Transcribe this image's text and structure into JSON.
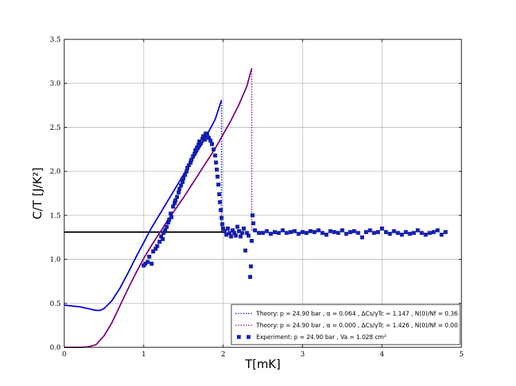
{
  "chart_data": {
    "type": "line",
    "title": "",
    "xlabel": "T[mK]",
    "ylabel": "C/T [J/K²]",
    "xlim": [
      0,
      5
    ],
    "ylim": [
      0,
      3.5
    ],
    "xticks": [
      "0",
      "1",
      "2",
      "3",
      "4",
      "5"
    ],
    "yticks": [
      "0.0",
      "0.5",
      "1.0",
      "1.5",
      "2.0",
      "2.5",
      "3.0",
      "3.5"
    ],
    "grid": true,
    "legend_position": "lower-right",
    "colors": {
      "theory1": "#0000dd",
      "theory2": "#800080",
      "experiment": "#1020c8",
      "reference": "#000000"
    },
    "reference_line": {
      "y": 1.31
    },
    "series": [
      {
        "name": "Theory: p = 24.90 bar , α = 0.064 , ΔCs/γTc ≃ 1.147 , N(0)/Nf = 0.36",
        "kind": "line",
        "color": "#0000dd",
        "x": [
          0.0,
          0.1,
          0.2,
          0.3,
          0.4,
          0.45,
          0.5,
          0.6,
          0.7,
          0.8,
          0.9,
          1.0,
          1.1,
          1.2,
          1.3,
          1.4,
          1.5,
          1.6,
          1.7,
          1.8,
          1.9,
          1.98
        ],
        "y": [
          0.48,
          0.47,
          0.46,
          0.44,
          0.42,
          0.42,
          0.44,
          0.53,
          0.67,
          0.84,
          1.02,
          1.19,
          1.36,
          1.51,
          1.66,
          1.81,
          1.96,
          2.11,
          2.26,
          2.42,
          2.59,
          2.81
        ],
        "drop": {
          "x": 1.98,
          "from": 2.81,
          "to": 1.31
        }
      },
      {
        "name": "Theory: p = 24.90 bar , α = 0.000 , ΔCs/γTc ≃ 1.426 , N(0)/Nf = 0.00",
        "kind": "line",
        "color": "#800080",
        "x": [
          0.0,
          0.2,
          0.3,
          0.4,
          0.5,
          0.6,
          0.7,
          0.8,
          0.9,
          1.0,
          1.1,
          1.2,
          1.3,
          1.4,
          1.5,
          1.6,
          1.7,
          1.8,
          1.9,
          2.0,
          2.1,
          2.2,
          2.3,
          2.36
        ],
        "y": [
          0.0,
          0.0,
          0.005,
          0.03,
          0.13,
          0.28,
          0.47,
          0.66,
          0.84,
          1.01,
          1.16,
          1.3,
          1.44,
          1.57,
          1.7,
          1.84,
          1.98,
          2.12,
          2.26,
          2.42,
          2.58,
          2.76,
          2.97,
          3.17
        ],
        "drop": {
          "x": 2.36,
          "from": 3.17,
          "to": 1.31
        }
      },
      {
        "name": "Experiment: p = 24.90 bar , Va = 1.028 cm³",
        "kind": "scatter",
        "color": "#1020c8",
        "points": [
          [
            1.0,
            0.93
          ],
          [
            1.02,
            0.95
          ],
          [
            1.05,
            0.97
          ],
          [
            1.07,
            1.03
          ],
          [
            1.1,
            0.95
          ],
          [
            1.12,
            1.09
          ],
          [
            1.15,
            1.12
          ],
          [
            1.17,
            1.15
          ],
          [
            1.2,
            1.2
          ],
          [
            1.22,
            1.26
          ],
          [
            1.24,
            1.23
          ],
          [
            1.25,
            1.3
          ],
          [
            1.27,
            1.33
          ],
          [
            1.29,
            1.37
          ],
          [
            1.31,
            1.42
          ],
          [
            1.32,
            1.45
          ],
          [
            1.34,
            1.52
          ],
          [
            1.35,
            1.48
          ],
          [
            1.37,
            1.6
          ],
          [
            1.39,
            1.64
          ],
          [
            1.4,
            1.67
          ],
          [
            1.42,
            1.71
          ],
          [
            1.44,
            1.76
          ],
          [
            1.45,
            1.8
          ],
          [
            1.47,
            1.84
          ],
          [
            1.49,
            1.88
          ],
          [
            1.5,
            1.92
          ],
          [
            1.52,
            1.96
          ],
          [
            1.54,
            2.0
          ],
          [
            1.55,
            2.04
          ],
          [
            1.57,
            2.07
          ],
          [
            1.59,
            2.1
          ],
          [
            1.6,
            2.13
          ],
          [
            1.62,
            2.17
          ],
          [
            1.64,
            2.2
          ],
          [
            1.65,
            2.24
          ],
          [
            1.67,
            2.27
          ],
          [
            1.69,
            2.3
          ],
          [
            1.7,
            2.34
          ],
          [
            1.72,
            2.32
          ],
          [
            1.74,
            2.37
          ],
          [
            1.75,
            2.4
          ],
          [
            1.77,
            2.36
          ],
          [
            1.78,
            2.43
          ],
          [
            1.8,
            2.41
          ],
          [
            1.82,
            2.38
          ],
          [
            1.84,
            2.35
          ],
          [
            1.86,
            2.31
          ],
          [
            1.88,
            2.25
          ],
          [
            1.9,
            2.18
          ],
          [
            1.91,
            2.1
          ],
          [
            1.92,
            2.02
          ],
          [
            1.93,
            1.94
          ],
          [
            1.94,
            1.85
          ],
          [
            1.95,
            1.74
          ],
          [
            1.96,
            1.65
          ],
          [
            1.97,
            1.56
          ],
          [
            1.98,
            1.47
          ],
          [
            1.99,
            1.4
          ],
          [
            2.0,
            1.35
          ],
          [
            2.02,
            1.32
          ],
          [
            2.04,
            1.28
          ],
          [
            2.06,
            1.35
          ],
          [
            2.08,
            1.3
          ],
          [
            2.1,
            1.26
          ],
          [
            2.12,
            1.33
          ],
          [
            2.14,
            1.3
          ],
          [
            2.16,
            1.27
          ],
          [
            2.18,
            1.37
          ],
          [
            2.2,
            1.32
          ],
          [
            2.22,
            1.26
          ],
          [
            2.24,
            1.3
          ],
          [
            2.26,
            1.35
          ],
          [
            2.28,
            1.1
          ],
          [
            2.3,
            1.3
          ],
          [
            2.32,
            1.27
          ],
          [
            2.34,
            0.8
          ],
          [
            2.35,
            0.92
          ],
          [
            2.36,
            1.21
          ],
          [
            2.37,
            1.5
          ],
          [
            2.38,
            1.41
          ],
          [
            2.4,
            1.33
          ],
          [
            2.45,
            1.3
          ],
          [
            2.5,
            1.3
          ],
          [
            2.55,
            1.32
          ],
          [
            2.6,
            1.29
          ],
          [
            2.65,
            1.31
          ],
          [
            2.7,
            1.3
          ],
          [
            2.75,
            1.33
          ],
          [
            2.8,
            1.3
          ],
          [
            2.85,
            1.31
          ],
          [
            2.9,
            1.32
          ],
          [
            2.95,
            1.29
          ],
          [
            3.0,
            1.31
          ],
          [
            3.05,
            1.3
          ],
          [
            3.1,
            1.32
          ],
          [
            3.15,
            1.31
          ],
          [
            3.2,
            1.33
          ],
          [
            3.25,
            1.3
          ],
          [
            3.3,
            1.28
          ],
          [
            3.35,
            1.32
          ],
          [
            3.4,
            1.31
          ],
          [
            3.45,
            1.3
          ],
          [
            3.5,
            1.33
          ],
          [
            3.55,
            1.29
          ],
          [
            3.6,
            1.31
          ],
          [
            3.65,
            1.32
          ],
          [
            3.7,
            1.3
          ],
          [
            3.75,
            1.25
          ],
          [
            3.8,
            1.31
          ],
          [
            3.85,
            1.33
          ],
          [
            3.9,
            1.3
          ],
          [
            3.95,
            1.31
          ],
          [
            4.0,
            1.35
          ],
          [
            4.05,
            1.31
          ],
          [
            4.1,
            1.29
          ],
          [
            4.15,
            1.32
          ],
          [
            4.2,
            1.3
          ],
          [
            4.25,
            1.28
          ],
          [
            4.3,
            1.31
          ],
          [
            4.35,
            1.29
          ],
          [
            4.4,
            1.3
          ],
          [
            4.45,
            1.33
          ],
          [
            4.5,
            1.3
          ],
          [
            4.55,
            1.28
          ],
          [
            4.6,
            1.3
          ],
          [
            4.65,
            1.31
          ],
          [
            4.7,
            1.33
          ],
          [
            4.75,
            1.28
          ],
          [
            4.8,
            1.31
          ]
        ]
      }
    ]
  }
}
